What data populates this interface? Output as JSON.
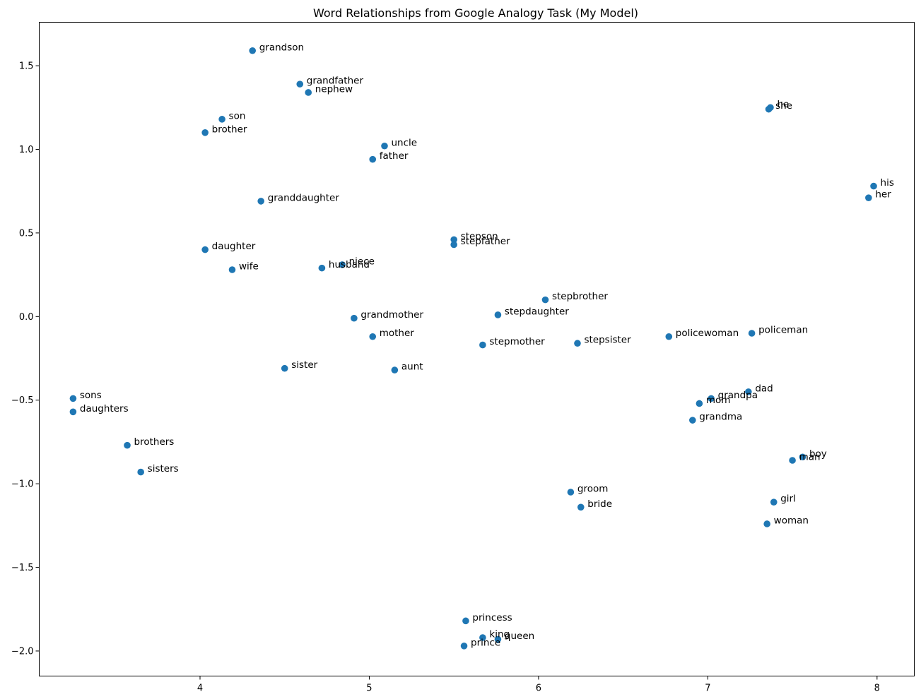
{
  "chart_data": {
    "type": "scatter",
    "title": "Word Relationships from Google Analogy Task (My Model)",
    "xlabel": "",
    "ylabel": "",
    "xlim": [
      3.05,
      8.22
    ],
    "ylim": [
      -2.15,
      1.76
    ],
    "xticks": [
      4,
      5,
      6,
      7,
      8
    ],
    "yticks": [
      -2.0,
      -1.5,
      -1.0,
      -0.5,
      0.0,
      0.5,
      1.0,
      1.5
    ],
    "xtick_labels": [
      "4",
      "5",
      "6",
      "7",
      "8"
    ],
    "ytick_labels": [
      "−2.0",
      "−1.5",
      "−1.0",
      "−0.5",
      "0.0",
      "0.5",
      "1.0",
      "1.5"
    ],
    "grid": false,
    "color": "#1f77b4",
    "points": [
      {
        "label": "grandson",
        "x": 4.31,
        "y": 1.59
      },
      {
        "label": "grandfather",
        "x": 4.59,
        "y": 1.39
      },
      {
        "label": "nephew",
        "x": 4.64,
        "y": 1.34
      },
      {
        "label": "son",
        "x": 4.13,
        "y": 1.18
      },
      {
        "label": "brother",
        "x": 4.03,
        "y": 1.1
      },
      {
        "label": "uncle",
        "x": 5.09,
        "y": 1.02
      },
      {
        "label": "father",
        "x": 5.02,
        "y": 0.94
      },
      {
        "label": "granddaughter",
        "x": 4.36,
        "y": 0.69
      },
      {
        "label": "daughter",
        "x": 4.03,
        "y": 0.4
      },
      {
        "label": "wife",
        "x": 4.19,
        "y": 0.28
      },
      {
        "label": "husband",
        "x": 4.72,
        "y": 0.29
      },
      {
        "label": "niece",
        "x": 4.84,
        "y": 0.31
      },
      {
        "label": "stepson",
        "x": 5.5,
        "y": 0.46
      },
      {
        "label": "stepfather",
        "x": 5.5,
        "y": 0.43
      },
      {
        "label": "stepbrother",
        "x": 6.04,
        "y": 0.1
      },
      {
        "label": "stepdaughter",
        "x": 5.76,
        "y": 0.01
      },
      {
        "label": "grandmother",
        "x": 4.91,
        "y": -0.01
      },
      {
        "label": "mother",
        "x": 5.02,
        "y": -0.12
      },
      {
        "label": "stepmother",
        "x": 5.67,
        "y": -0.17
      },
      {
        "label": "stepsister",
        "x": 6.23,
        "y": -0.16
      },
      {
        "label": "sister",
        "x": 4.5,
        "y": -0.31
      },
      {
        "label": "aunt",
        "x": 5.15,
        "y": -0.32
      },
      {
        "label": "he",
        "x": 7.37,
        "y": 1.25
      },
      {
        "label": "she",
        "x": 7.36,
        "y": 1.24
      },
      {
        "label": "his",
        "x": 7.98,
        "y": 0.78
      },
      {
        "label": "her",
        "x": 7.95,
        "y": 0.71
      },
      {
        "label": "policewoman",
        "x": 6.77,
        "y": -0.12
      },
      {
        "label": "policeman",
        "x": 7.26,
        "y": -0.1
      },
      {
        "label": "dad",
        "x": 7.24,
        "y": -0.45
      },
      {
        "label": "grandpa",
        "x": 7.02,
        "y": -0.49
      },
      {
        "label": "mom",
        "x": 6.95,
        "y": -0.52
      },
      {
        "label": "grandma",
        "x": 6.91,
        "y": -0.62
      },
      {
        "label": "boy",
        "x": 7.56,
        "y": -0.84
      },
      {
        "label": "man",
        "x": 7.5,
        "y": -0.86
      },
      {
        "label": "girl",
        "x": 7.39,
        "y": -1.11
      },
      {
        "label": "woman",
        "x": 7.35,
        "y": -1.24
      },
      {
        "label": "groom",
        "x": 6.19,
        "y": -1.05
      },
      {
        "label": "bride",
        "x": 6.25,
        "y": -1.14
      },
      {
        "label": "sons",
        "x": 3.25,
        "y": -0.49
      },
      {
        "label": "daughters",
        "x": 3.25,
        "y": -0.57
      },
      {
        "label": "brothers",
        "x": 3.57,
        "y": -0.77
      },
      {
        "label": "sisters",
        "x": 3.65,
        "y": -0.93
      },
      {
        "label": "princess",
        "x": 5.57,
        "y": -1.82
      },
      {
        "label": "king",
        "x": 5.67,
        "y": -1.92
      },
      {
        "label": "queen",
        "x": 5.76,
        "y": -1.93
      },
      {
        "label": "prince",
        "x": 5.56,
        "y": -1.97
      }
    ]
  }
}
